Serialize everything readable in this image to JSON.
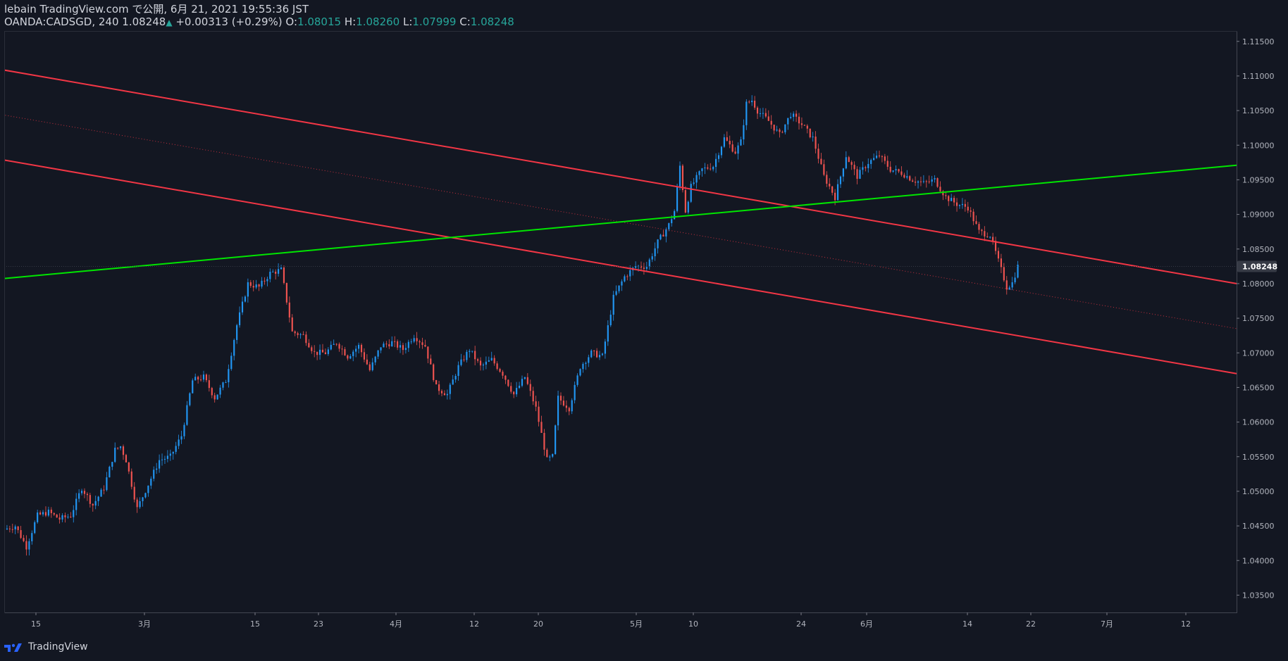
{
  "header": {
    "line1": "lebain TradingView.com で公開, 6月 21, 2021 19:55:36 JST",
    "symbol": "OANDA:CADSGD, 240",
    "last": "1.08248",
    "change": "+0.00313 (+0.29%)",
    "o_label": "O:",
    "o": "1.08015",
    "h_label": "H:",
    "h": "1.08260",
    "l_label": "L:",
    "l": "1.07999",
    "c_label": "C:",
    "c": "1.08248"
  },
  "footer": {
    "brand": "TradingView",
    "logo_icon": "tradingview-logo-icon"
  },
  "colors": {
    "bg": "#131722",
    "up": "#2196f3",
    "down": "#ef5350",
    "channel": "#f23645",
    "trend": "#00e600",
    "grid": "#363a45"
  },
  "chart_data": {
    "type": "candlestick",
    "title": "",
    "ylim": [
      1.0325,
      1.1165
    ],
    "y_ticks": [
      "1.11500",
      "1.11000",
      "1.10500",
      "1.10000",
      "1.09500",
      "1.09000",
      "1.08500",
      "1.08000",
      "1.07500",
      "1.07000",
      "1.06500",
      "1.06000",
      "1.05500",
      "1.05000",
      "1.04500",
      "1.04000",
      "1.03500"
    ],
    "x_ticks": [
      "15",
      "3月",
      "15",
      "23",
      "4月",
      "12",
      "20",
      "5月",
      "10",
      "24",
      "6月",
      "14",
      "22",
      "7月",
      "12"
    ],
    "last_price_label": "1.08248",
    "price_path": [
      [
        0,
        1.0445
      ],
      [
        2,
        1.045
      ],
      [
        4,
        1.042
      ],
      [
        6,
        1.0465
      ],
      [
        8,
        1.047
      ],
      [
        10,
        1.046
      ],
      [
        12,
        1.0465
      ],
      [
        14,
        1.0505
      ],
      [
        16,
        1.048
      ],
      [
        18,
        1.0505
      ],
      [
        20,
        1.056
      ],
      [
        21,
        1.0565
      ],
      [
        22,
        1.0545
      ],
      [
        24,
        1.0475
      ],
      [
        26,
        1.051
      ],
      [
        28,
        1.0545
      ],
      [
        30,
        1.055
      ],
      [
        32,
        1.058
      ],
      [
        34,
        1.066
      ],
      [
        36,
        1.0665
      ],
      [
        38,
        1.0635
      ],
      [
        40,
        1.066
      ],
      [
        42,
        1.074
      ],
      [
        44,
        1.08
      ],
      [
        46,
        1.0795
      ],
      [
        48,
        1.0815
      ],
      [
        50,
        1.082
      ],
      [
        52,
        1.073
      ],
      [
        54,
        1.0725
      ],
      [
        56,
        1.07
      ],
      [
        58,
        1.07
      ],
      [
        60,
        1.0715
      ],
      [
        62,
        1.0695
      ],
      [
        64,
        1.071
      ],
      [
        66,
        1.0675
      ],
      [
        68,
        1.071
      ],
      [
        70,
        1.0715
      ],
      [
        72,
        1.0705
      ],
      [
        74,
        1.0725
      ],
      [
        76,
        1.071
      ],
      [
        78,
        1.065
      ],
      [
        80,
        1.064
      ],
      [
        82,
        1.068
      ],
      [
        84,
        1.0705
      ],
      [
        86,
        1.068
      ],
      [
        88,
        1.069
      ],
      [
        90,
        1.067
      ],
      [
        92,
        1.064
      ],
      [
        94,
        1.0665
      ],
      [
        96,
        1.062
      ],
      [
        98,
        1.0545
      ],
      [
        99,
        1.055
      ],
      [
        100,
        1.0635
      ],
      [
        102,
        1.062
      ],
      [
        104,
        1.068
      ],
      [
        106,
        1.07
      ],
      [
        108,
        1.0695
      ],
      [
        110,
        1.078
      ],
      [
        112,
        1.081
      ],
      [
        114,
        1.0825
      ],
      [
        116,
        1.0825
      ],
      [
        118,
        1.086
      ],
      [
        120,
        1.0885
      ],
      [
        121,
        1.0905
      ],
      [
        122,
        1.097
      ],
      [
        123,
        1.0905
      ],
      [
        124,
        1.094
      ],
      [
        126,
        1.0965
      ],
      [
        128,
        1.097
      ],
      [
        130,
        1.101
      ],
      [
        132,
        1.099
      ],
      [
        133,
        1.1005
      ],
      [
        134,
        1.106
      ],
      [
        135,
        1.1065
      ],
      [
        136,
        1.105
      ],
      [
        138,
        1.1035
      ],
      [
        140,
        1.1015
      ],
      [
        142,
        1.1045
      ],
      [
        144,
        1.103
      ],
      [
        146,
        1.101
      ],
      [
        148,
        1.0955
      ],
      [
        150,
        1.0925
      ],
      [
        152,
        1.0985
      ],
      [
        154,
        1.0955
      ],
      [
        156,
        1.0975
      ],
      [
        158,
        1.0985
      ],
      [
        160,
        1.0965
      ],
      [
        162,
        1.096
      ],
      [
        164,
        1.095
      ],
      [
        166,
        1.0945
      ],
      [
        168,
        1.095
      ],
      [
        170,
        1.0925
      ],
      [
        172,
        1.0915
      ],
      [
        174,
        1.091
      ],
      [
        176,
        1.0875
      ],
      [
        178,
        1.087
      ],
      [
        180,
        1.082
      ],
      [
        181,
        1.0795
      ],
      [
        182,
        1.0801
      ],
      [
        183,
        1.0825
      ]
    ],
    "lines": [
      {
        "name": "channel-upper",
        "style": "solid",
        "p1": [
          -66.0,
          1.12
        ],
        "p2": [
          222.5,
          1.08
        ]
      },
      {
        "name": "channel-mid",
        "style": "dotted",
        "p1": [
          -66.0,
          1.1135
        ],
        "p2": [
          222.5,
          1.0735
        ]
      },
      {
        "name": "channel-lower",
        "style": "solid",
        "p1": [
          -66.0,
          1.107
        ],
        "p2": [
          222.5,
          1.067
        ]
      },
      {
        "name": "trendline",
        "style": "solid",
        "p1": [
          0.0,
          1.08074
        ],
        "p2": [
          222.5,
          1.0971
        ]
      }
    ]
  }
}
